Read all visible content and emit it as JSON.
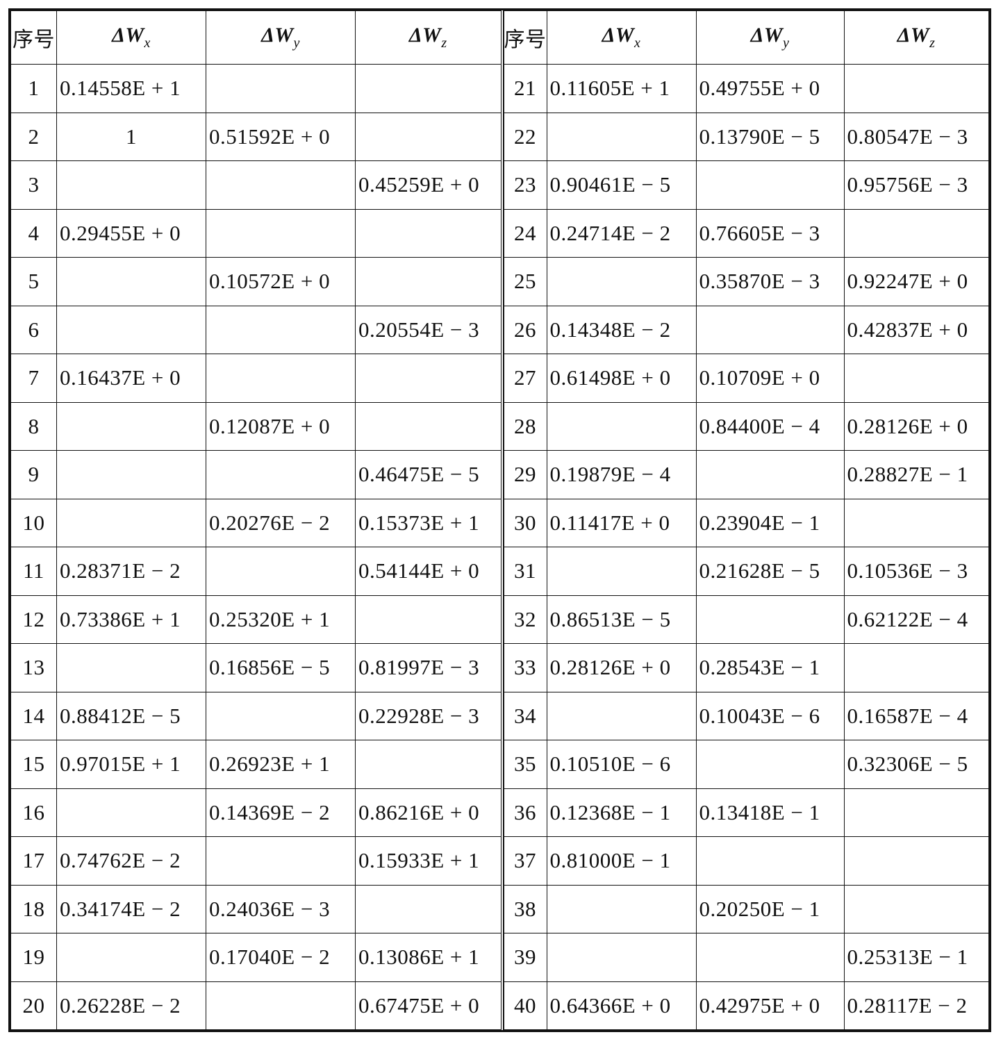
{
  "headers": {
    "index": "序号",
    "wx": {
      "symbol": "ΔW",
      "subscript": "x"
    },
    "wy": {
      "symbol": "ΔW",
      "subscript": "y"
    },
    "wz": {
      "symbol": "ΔW",
      "subscript": "z"
    }
  },
  "rows": [
    {
      "n": "1",
      "wx": "0.14558E + 1",
      "wy": "",
      "wz": ""
    },
    {
      "n": "2",
      "wx": "1",
      "wy": "0.51592E + 0",
      "wz": ""
    },
    {
      "n": "3",
      "wx": "",
      "wy": "",
      "wz": "0.45259E + 0"
    },
    {
      "n": "4",
      "wx": "0.29455E + 0",
      "wy": "",
      "wz": ""
    },
    {
      "n": "5",
      "wx": "",
      "wy": "0.10572E + 0",
      "wz": ""
    },
    {
      "n": "6",
      "wx": "",
      "wy": "",
      "wz": "0.20554E − 3"
    },
    {
      "n": "7",
      "wx": "0.16437E + 0",
      "wy": "",
      "wz": ""
    },
    {
      "n": "8",
      "wx": "",
      "wy": "0.12087E + 0",
      "wz": ""
    },
    {
      "n": "9",
      "wx": "",
      "wy": "",
      "wz": "0.46475E − 5"
    },
    {
      "n": "10",
      "wx": "",
      "wy": "0.20276E − 2",
      "wz": "0.15373E + 1"
    },
    {
      "n": "11",
      "wx": "0.28371E − 2",
      "wy": "",
      "wz": "0.54144E + 0"
    },
    {
      "n": "12",
      "wx": "0.73386E + 1",
      "wy": "0.25320E + 1",
      "wz": ""
    },
    {
      "n": "13",
      "wx": "",
      "wy": "0.16856E − 5",
      "wz": "0.81997E − 3"
    },
    {
      "n": "14",
      "wx": "0.88412E − 5",
      "wy": "",
      "wz": "0.22928E − 3"
    },
    {
      "n": "15",
      "wx": "0.97015E + 1",
      "wy": "0.26923E + 1",
      "wz": ""
    },
    {
      "n": "16",
      "wx": "",
      "wy": "0.14369E − 2",
      "wz": "0.86216E + 0"
    },
    {
      "n": "17",
      "wx": "0.74762E − 2",
      "wy": "",
      "wz": "0.15933E + 1"
    },
    {
      "n": "18",
      "wx": "0.34174E − 2",
      "wy": "0.24036E − 3",
      "wz": ""
    },
    {
      "n": "19",
      "wx": "",
      "wy": "0.17040E − 2",
      "wz": "0.13086E + 1"
    },
    {
      "n": "20",
      "wx": "0.26228E − 2",
      "wy": "",
      "wz": "0.67475E + 0"
    },
    {
      "n": "21",
      "wx": "0.11605E + 1",
      "wy": "0.49755E + 0",
      "wz": ""
    },
    {
      "n": "22",
      "wx": "",
      "wy": "0.13790E − 5",
      "wz": "0.80547E − 3"
    },
    {
      "n": "23",
      "wx": "0.90461E − 5",
      "wy": "",
      "wz": "0.95756E − 3"
    },
    {
      "n": "24",
      "wx": "0.24714E − 2",
      "wy": "0.76605E − 3",
      "wz": ""
    },
    {
      "n": "25",
      "wx": "",
      "wy": "0.35870E − 3",
      "wz": "0.92247E + 0"
    },
    {
      "n": "26",
      "wx": "0.14348E − 2",
      "wy": "",
      "wz": "0.42837E + 0"
    },
    {
      "n": "27",
      "wx": "0.61498E + 0",
      "wy": "0.10709E + 0",
      "wz": ""
    },
    {
      "n": "28",
      "wx": "",
      "wy": "0.84400E − 4",
      "wz": "0.28126E + 0"
    },
    {
      "n": "29",
      "wx": "0.19879E − 4",
      "wy": "",
      "wz": "0.28827E − 1"
    },
    {
      "n": "30",
      "wx": "0.11417E + 0",
      "wy": "0.23904E − 1",
      "wz": ""
    },
    {
      "n": "31",
      "wx": "",
      "wy": "0.21628E − 5",
      "wz": "0.10536E − 3"
    },
    {
      "n": "32",
      "wx": "0.86513E − 5",
      "wy": "",
      "wz": "0.62122E − 4"
    },
    {
      "n": "33",
      "wx": "0.28126E + 0",
      "wy": "0.28543E − 1",
      "wz": ""
    },
    {
      "n": "34",
      "wx": "",
      "wy": "0.10043E − 6",
      "wz": "0.16587E − 4"
    },
    {
      "n": "35",
      "wx": "0.10510E − 6",
      "wy": "",
      "wz": "0.32306E − 5"
    },
    {
      "n": "36",
      "wx": "0.12368E − 1",
      "wy": "0.13418E − 1",
      "wz": ""
    },
    {
      "n": "37",
      "wx": "0.81000E − 1",
      "wy": "",
      "wz": ""
    },
    {
      "n": "38",
      "wx": "",
      "wy": "0.20250E − 1",
      "wz": ""
    },
    {
      "n": "39",
      "wx": "",
      "wy": "",
      "wz": "0.25313E − 1"
    },
    {
      "n": "40",
      "wx": "0.64366E + 0",
      "wy": "0.42975E + 0",
      "wz": "0.28117E − 2"
    }
  ]
}
